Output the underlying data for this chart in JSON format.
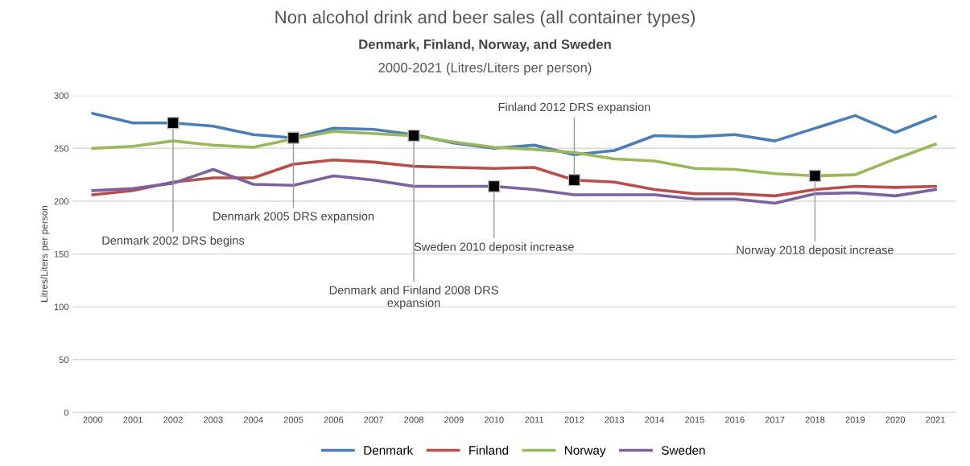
{
  "chart_data": {
    "type": "line",
    "title": "Non alcohol drink and beer sales (all container types)",
    "subtitle": "Denmark, Finland, Norway, and Sweden\n2000-2021 (Litres/Liters per person)",
    "ylabel": "Litres/Liters per person",
    "categories": [
      "2000",
      "2001",
      "2002",
      "2003",
      "2004",
      "2005",
      "2006",
      "2007",
      "2008",
      "2009",
      "2010",
      "2011",
      "2012",
      "2013",
      "2014",
      "2015",
      "2016",
      "2017",
      "2018",
      "2019",
      "2020",
      "2021"
    ],
    "series": [
      {
        "name": "Denmark",
        "color": "#4a7ebb",
        "values": [
          283,
          274,
          274,
          271,
          263,
          260,
          269,
          268,
          263,
          255,
          250,
          253,
          244,
          248,
          262,
          261,
          263,
          257,
          269,
          281,
          265,
          280
        ]
      },
      {
        "name": "Finland",
        "color": "#be4b48",
        "values": [
          206,
          210,
          218,
          222,
          222,
          235,
          239,
          237,
          233,
          232,
          231,
          232,
          220,
          218,
          211,
          207,
          207,
          205,
          211,
          214,
          213,
          214
        ]
      },
      {
        "name": "Norway",
        "color": "#98b954",
        "values": [
          250,
          252,
          257,
          253,
          251,
          259,
          266,
          264,
          262,
          256,
          251,
          249,
          246,
          240,
          238,
          231,
          230,
          226,
          224,
          225,
          240,
          254
        ]
      },
      {
        "name": "Sweden",
        "color": "#7d60a0",
        "values": [
          210,
          212,
          217,
          230,
          216,
          215,
          224,
          220,
          214,
          214,
          214,
          211,
          206,
          206,
          206,
          202,
          202,
          198,
          207,
          208,
          205,
          211
        ]
      }
    ],
    "ylim": [
      0,
      300
    ],
    "yticks": [
      0,
      50,
      100,
      150,
      200,
      250,
      300
    ],
    "grid": "y",
    "legend": "bottom",
    "marker": "none",
    "line_style": "solid",
    "annotations": [
      {
        "text": "Denmark 2002 DRS begins",
        "x": "2002",
        "y": 274
      },
      {
        "text": "Denmark 2005 DRS expansion",
        "x": "2005",
        "y": 260
      },
      {
        "text": "Denmark and Finland 2008 DRS\nexpansion",
        "x": "2008",
        "y": 262
      },
      {
        "text": "Sweden 2010 deposit increase",
        "x": "2010",
        "y": 214
      },
      {
        "text": "Finland 2012 DRS expansion",
        "x": "2012",
        "y": 220
      },
      {
        "text": "Norway 2018 deposit increase",
        "x": "2018",
        "y": 224
      }
    ]
  }
}
